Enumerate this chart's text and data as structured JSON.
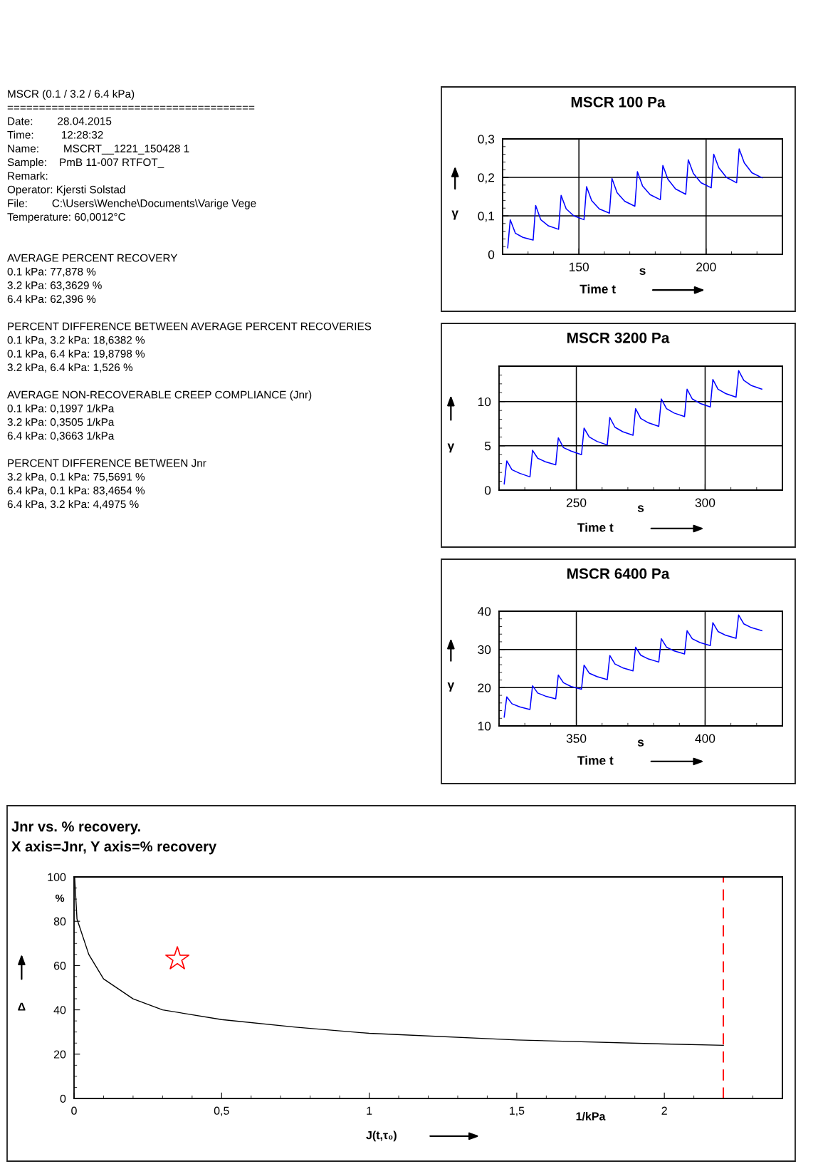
{
  "chart_data": [
    {
      "type": "other",
      "title": "MSCR (0.1 / 3.2 / 6.4 kPa)",
      "annotations": [
        "=======================================",
        "Date:        28.04.2015",
        "Time:         12:28:32",
        "Name:        MSCRT__1221_150428 1",
        "Sample:    PmB 11-007 RTFOT_",
        "Remark:",
        "Operator: Kjersti Solstad",
        "File:        C:\\Users\\Wenche\\Documents\\Varige Vege",
        "Temperature: 60,0012°C",
        "AVERAGE PERCENT RECOVERY",
        "0.1 kPa: 77,878 %",
        "3.2 kPa: 63,3629 %",
        "6.4 kPa: 62,396 %",
        "PERCENT DIFFERENCE BETWEEN AVERAGE PERCENT RECOVERIES",
        "0.1 kPa, 3.2 kPa: 18,6382 %",
        "0.1 kPa, 6.4 kPa: 19,8798 %",
        "3.2 kPa, 6.4 kPa: 1,526 %",
        "AVERAGE NON-RECOVERABLE CREEP COMPLIANCE (Jnr)",
        "0.1 kPa: 0,1997 1/kPa",
        "3.2 kPa: 0,3505 1/kPa",
        "6.4 kPa: 0,3663 1/kPa",
        "PERCENT DIFFERENCE BETWEEN Jnr",
        "3.2 kPa, 0.1 kPa: 75,5691 %",
        "6.4 kPa, 0.1 kPa: 83,4654 %",
        "6.4 kPa, 3.2 kPa: 4,4975 %"
      ]
    },
    {
      "type": "line",
      "title": "MSCR 100 Pa",
      "xlabel": "Time t",
      "ylabel": "γ",
      "annotations": [
        "s"
      ],
      "xlim": [
        120,
        230
      ],
      "ylim": [
        0,
        0.3
      ],
      "xticks": [
        150,
        200
      ],
      "yticks": [
        0,
        {
          "value": 0.1,
          "label": "0,1"
        },
        {
          "value": 0.2,
          "label": "0,2"
        },
        {
          "value": 0.3,
          "label": "0,3"
        }
      ],
      "grid": true,
      "series": [
        {
          "color": "#0000ff",
          "x": [
            122,
            123,
            125,
            128,
            132,
            133,
            135,
            138,
            142,
            143,
            145,
            148,
            152,
            153,
            155,
            158,
            162,
            163,
            165,
            168,
            172,
            173,
            175,
            178,
            182,
            183,
            185,
            188,
            192,
            193,
            195,
            198,
            202,
            203,
            205,
            208,
            212,
            213,
            215,
            218,
            222
          ],
          "values": [
            0.017,
            0.09,
            0.055,
            0.044,
            0.037,
            0.127,
            0.09,
            0.074,
            0.065,
            0.153,
            0.118,
            0.1,
            0.09,
            0.176,
            0.14,
            0.118,
            0.107,
            0.197,
            0.16,
            0.138,
            0.125,
            0.215,
            0.178,
            0.155,
            0.142,
            0.231,
            0.195,
            0.17,
            0.156,
            0.246,
            0.21,
            0.186,
            0.173,
            0.26,
            0.225,
            0.2,
            0.186,
            0.274,
            0.238,
            0.212,
            0.199
          ]
        }
      ]
    },
    {
      "type": "line",
      "title": "MSCR 3200 Pa",
      "xlabel": "Time t",
      "ylabel": "γ",
      "annotations": [
        "s"
      ],
      "xlim": [
        220,
        330
      ],
      "ylim": [
        0,
        14
      ],
      "xticks": [
        250,
        300
      ],
      "yticks": [
        0,
        5,
        10
      ],
      "grid": true,
      "series": [
        {
          "color": "#0000ff",
          "x": [
            222,
            223,
            225,
            228,
            232,
            233,
            235,
            238,
            242,
            243,
            245,
            248,
            252,
            253,
            255,
            258,
            262,
            263,
            265,
            268,
            272,
            273,
            275,
            278,
            282,
            283,
            285,
            288,
            292,
            293,
            295,
            298,
            302,
            303,
            305,
            308,
            312,
            313,
            315,
            318,
            322
          ],
          "values": [
            0.7,
            3.3,
            2.3,
            1.9,
            1.5,
            4.5,
            3.6,
            3.2,
            2.85,
            5.9,
            4.8,
            4.4,
            4.0,
            7.0,
            6.0,
            5.5,
            5.1,
            8.2,
            7.1,
            6.6,
            6.2,
            9.2,
            8.1,
            7.6,
            7.2,
            10.3,
            9.2,
            8.7,
            8.3,
            11.4,
            10.3,
            9.8,
            9.4,
            12.5,
            11.4,
            10.9,
            10.5,
            13.5,
            12.4,
            11.8,
            11.4
          ]
        }
      ]
    },
    {
      "type": "line",
      "title": "MSCR 6400 Pa",
      "xlabel": "Time t",
      "ylabel": "γ",
      "annotations": [
        "s"
      ],
      "xlim": [
        320,
        430
      ],
      "ylim": [
        10,
        40
      ],
      "xticks": [
        350,
        400
      ],
      "yticks": [
        10,
        20,
        30,
        40
      ],
      "grid": true,
      "series": [
        {
          "color": "#0000ff",
          "x": [
            322,
            323,
            325,
            328,
            332,
            333,
            335,
            338,
            342,
            343,
            345,
            348,
            352,
            353,
            355,
            358,
            362,
            363,
            365,
            368,
            372,
            373,
            375,
            378,
            382,
            383,
            385,
            388,
            392,
            393,
            395,
            398,
            402,
            403,
            405,
            408,
            412,
            413,
            415,
            418,
            422
          ],
          "values": [
            12.3,
            17.6,
            15.8,
            15.0,
            14.3,
            20.5,
            18.6,
            17.8,
            17.1,
            23.3,
            21.3,
            20.3,
            19.6,
            25.9,
            23.8,
            22.9,
            22.1,
            28.4,
            26.2,
            25.2,
            24.4,
            30.6,
            28.5,
            27.5,
            26.7,
            32.8,
            30.6,
            29.6,
            28.8,
            34.9,
            32.8,
            31.8,
            31.0,
            37.0,
            34.7,
            33.7,
            32.9,
            39.0,
            36.7,
            35.7,
            34.9
          ]
        }
      ]
    },
    {
      "type": "line",
      "title": "Jnr vs. % recovery.",
      "subtitle": "X axis=Jnr, Y axis=% recovery",
      "xlabel": "J(t,τ₀)",
      "ylabel": "Δ",
      "annotations": [
        "1/kPa",
        "%"
      ],
      "xlim": [
        0,
        2.4
      ],
      "ylim": [
        0,
        100
      ],
      "xticks": [
        0,
        {
          "value": 0.5,
          "label": "0,5"
        },
        1,
        {
          "value": 1.5,
          "label": "1,5"
        },
        2
      ],
      "yticks": [
        0,
        20,
        40,
        60,
        80,
        100
      ],
      "series": [
        {
          "color": "#000000",
          "x": [
            0.002,
            0.01,
            0.05,
            0.1,
            0.2,
            0.3,
            0.5,
            0.75,
            1.0,
            1.5,
            2.0,
            2.2
          ],
          "values": [
            100,
            81,
            65,
            54,
            45,
            40,
            35.6,
            32.2,
            29.4,
            26.4,
            24.6,
            24
          ]
        },
        {
          "type": "scatter",
          "marker": "star",
          "color": "#ff0000",
          "x": [
            0.35
          ],
          "values": [
            63
          ]
        }
      ],
      "ref_lines": [
        {
          "axis": "x",
          "value": 2.2,
          "color": "#ff0000",
          "line_style": "dashed"
        }
      ]
    }
  ]
}
